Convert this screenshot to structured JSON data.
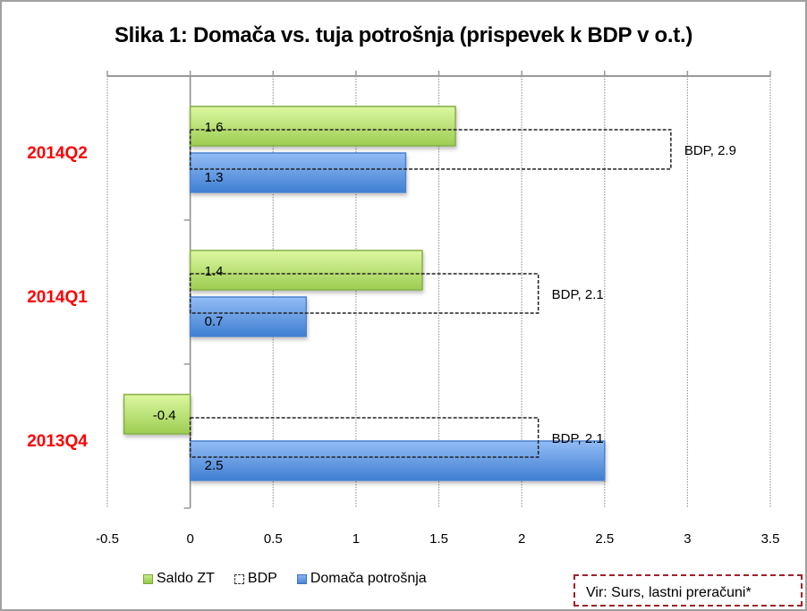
{
  "chart_data": {
    "type": "bar",
    "orientation": "horizontal",
    "title": "Slika 1: Domača vs. tuja potrošnja (prispevek k BDP v o.t.)",
    "categories": [
      "2014Q2",
      "2014Q1",
      "2013Q4"
    ],
    "series": [
      {
        "name": "Saldo ZT",
        "values": [
          1.6,
          1.4,
          -0.4
        ],
        "labels": [
          "1.6",
          "1.4",
          "-0.4"
        ],
        "color": "#a8d668"
      },
      {
        "name": "BDP",
        "values": [
          2.9,
          2.1,
          2.1
        ],
        "labels": [
          "BDP, 2.9",
          "BDP, 2.1",
          "BDP, 2.1"
        ],
        "color": "#333333",
        "style": "dashed-outline"
      },
      {
        "name": "Domača potrošnja",
        "values": [
          1.3,
          0.7,
          2.5
        ],
        "labels": [
          "1.3",
          "0.7",
          "2.5"
        ],
        "color": "#5b95e0"
      }
    ],
    "xlim": [
      -0.5,
      3.5
    ],
    "xticks": [
      -0.5,
      0,
      0.5,
      1,
      1.5,
      2,
      2.5,
      3,
      3.5
    ],
    "xtick_labels": [
      "-0.5",
      "0",
      "0.5",
      "1",
      "1.5",
      "2",
      "2.5",
      "3",
      "3.5"
    ],
    "xlabel": "",
    "ylabel": "",
    "grid": true,
    "legend_position": "bottom-left"
  },
  "legend": {
    "items": [
      "Saldo ZT",
      "BDP",
      "Domača potrošnja"
    ]
  },
  "source_note": "Vir: Surs, lastni preračuni*",
  "colors": {
    "category_label": "#ff0000",
    "source_border": "#a0202a"
  }
}
